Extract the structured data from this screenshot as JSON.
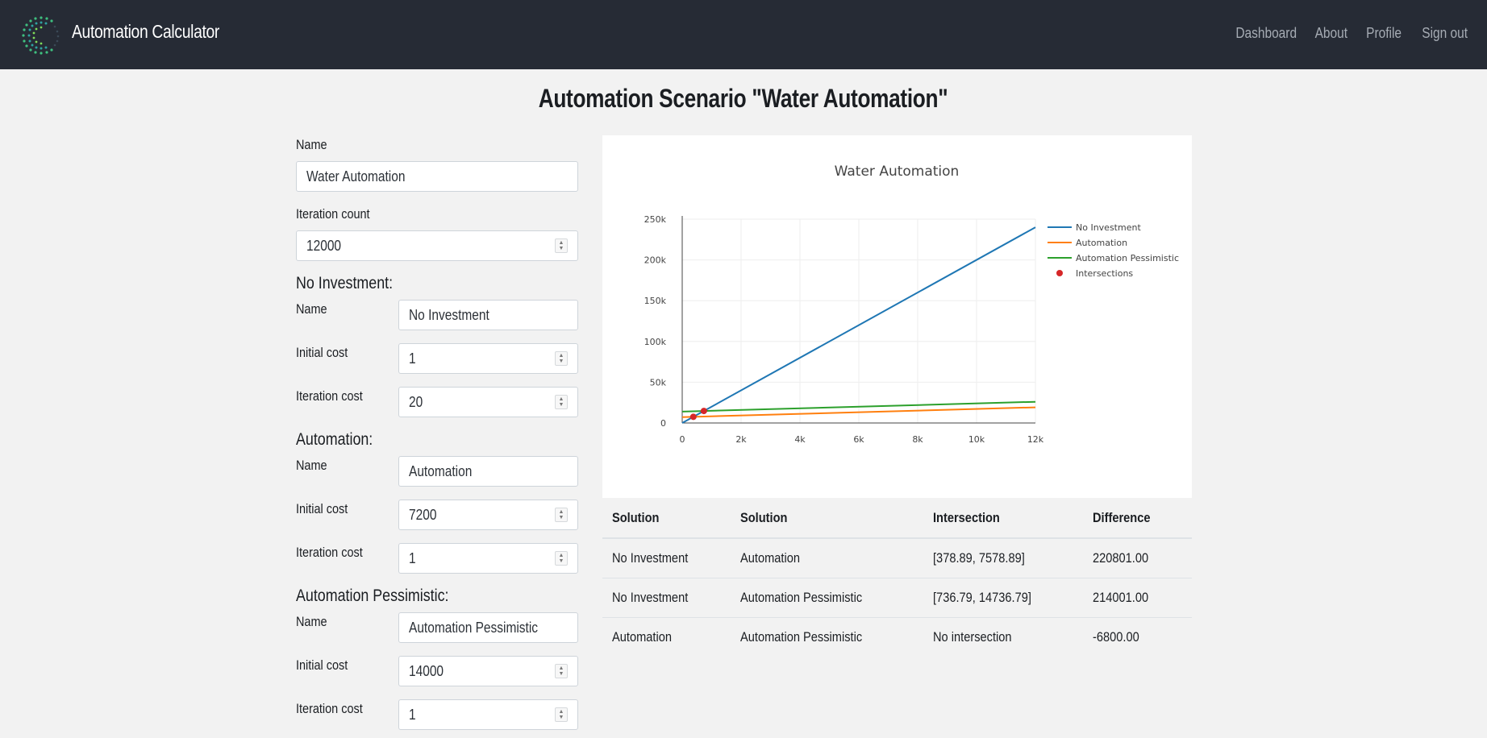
{
  "app": {
    "title": "Automation Calculator"
  },
  "nav": {
    "items": [
      "Dashboard",
      "About",
      "Profile",
      "Sign out"
    ]
  },
  "page": {
    "title": "Automation Scenario \"Water Automation\""
  },
  "form": {
    "name_label": "Name",
    "name_value": "Water Automation",
    "iteration_label": "Iteration count",
    "iteration_value": "12000",
    "solutions": [
      {
        "heading": "No Investment:",
        "name_label": "Name",
        "name_value": "No Investment",
        "initial_label": "Initial cost",
        "initial_value": "1",
        "iter_label": "Iteration cost",
        "iter_value": "20"
      },
      {
        "heading": "Automation:",
        "name_label": "Name",
        "name_value": "Automation",
        "initial_label": "Initial cost",
        "initial_value": "7200",
        "iter_label": "Iteration cost",
        "iter_value": "1"
      },
      {
        "heading": "Automation Pessimistic:",
        "name_label": "Name",
        "name_value": "Automation Pessimistic",
        "initial_label": "Initial cost",
        "initial_value": "14000",
        "iter_label": "Iteration cost",
        "iter_value": "1"
      }
    ]
  },
  "chart_data": {
    "type": "line",
    "title": "Water Automation",
    "xlabel": "",
    "ylabel": "",
    "xlim": [
      0,
      12000
    ],
    "ylim": [
      0,
      250000
    ],
    "x_ticks": [
      "0",
      "2k",
      "4k",
      "6k",
      "8k",
      "10k",
      "12k"
    ],
    "y_ticks": [
      "0",
      "50k",
      "100k",
      "150k",
      "200k",
      "250k"
    ],
    "grid": true,
    "legend_position": "right",
    "series": [
      {
        "name": "No Investment",
        "color": "#1f77b4",
        "x": [
          0,
          12000
        ],
        "y": [
          1,
          240001
        ]
      },
      {
        "name": "Automation",
        "color": "#ff7f0e",
        "x": [
          0,
          12000
        ],
        "y": [
          7200,
          19200
        ]
      },
      {
        "name": "Automation Pessimistic",
        "color": "#2ca02c",
        "x": [
          0,
          12000
        ],
        "y": [
          14000,
          26000
        ]
      }
    ],
    "markers": {
      "name": "Intersections",
      "color": "#d62728",
      "points": [
        [
          378.89,
          7578.89
        ],
        [
          736.79,
          14736.79
        ]
      ]
    }
  },
  "table": {
    "headers": [
      "Solution",
      "Solution",
      "Intersection",
      "Difference"
    ],
    "rows": [
      [
        "No Investment",
        "Automation",
        "[378.89, 7578.89]",
        "220801.00"
      ],
      [
        "No Investment",
        "Automation Pessimistic",
        "[736.79, 14736.79]",
        "214001.00"
      ],
      [
        "Automation",
        "Automation Pessimistic",
        "No intersection",
        "-6800.00"
      ]
    ]
  }
}
